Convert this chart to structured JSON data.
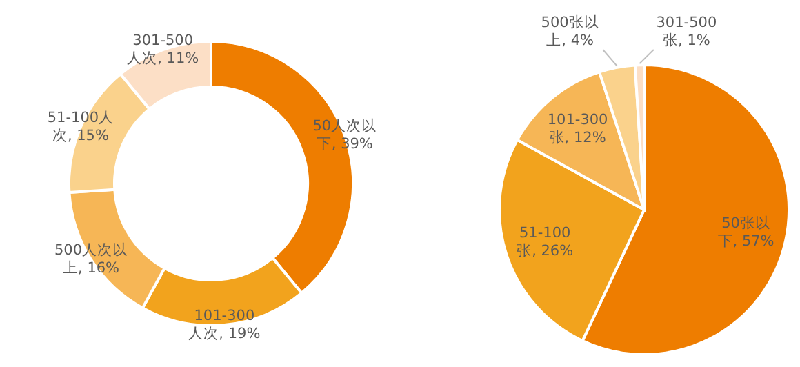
{
  "chart_data": [
    {
      "type": "donut",
      "categories": [
        "50人次以下",
        "101-300人次",
        "500人次以上",
        "51-100人次",
        "301-500人次"
      ],
      "values": [
        39,
        19,
        16,
        15,
        11
      ],
      "colors": [
        "#ee7d00",
        "#f2a31d",
        "#f6b656",
        "#fad28c",
        "#fcdfc6"
      ],
      "value_labels": [
        "39%",
        "19%",
        "16%",
        "15%",
        "11%"
      ]
    },
    {
      "type": "pie",
      "categories": [
        "50张以下",
        "51-100张",
        "101-300张",
        "500张以上",
        "301-500张"
      ],
      "values": [
        57,
        26,
        12,
        4,
        1
      ],
      "colors": [
        "#ee7d00",
        "#f2a31d",
        "#f6b656",
        "#fad28c",
        "#fcdfc6"
      ],
      "value_labels": [
        "57%",
        "26%",
        "12%",
        "4%",
        "1%"
      ]
    }
  ]
}
